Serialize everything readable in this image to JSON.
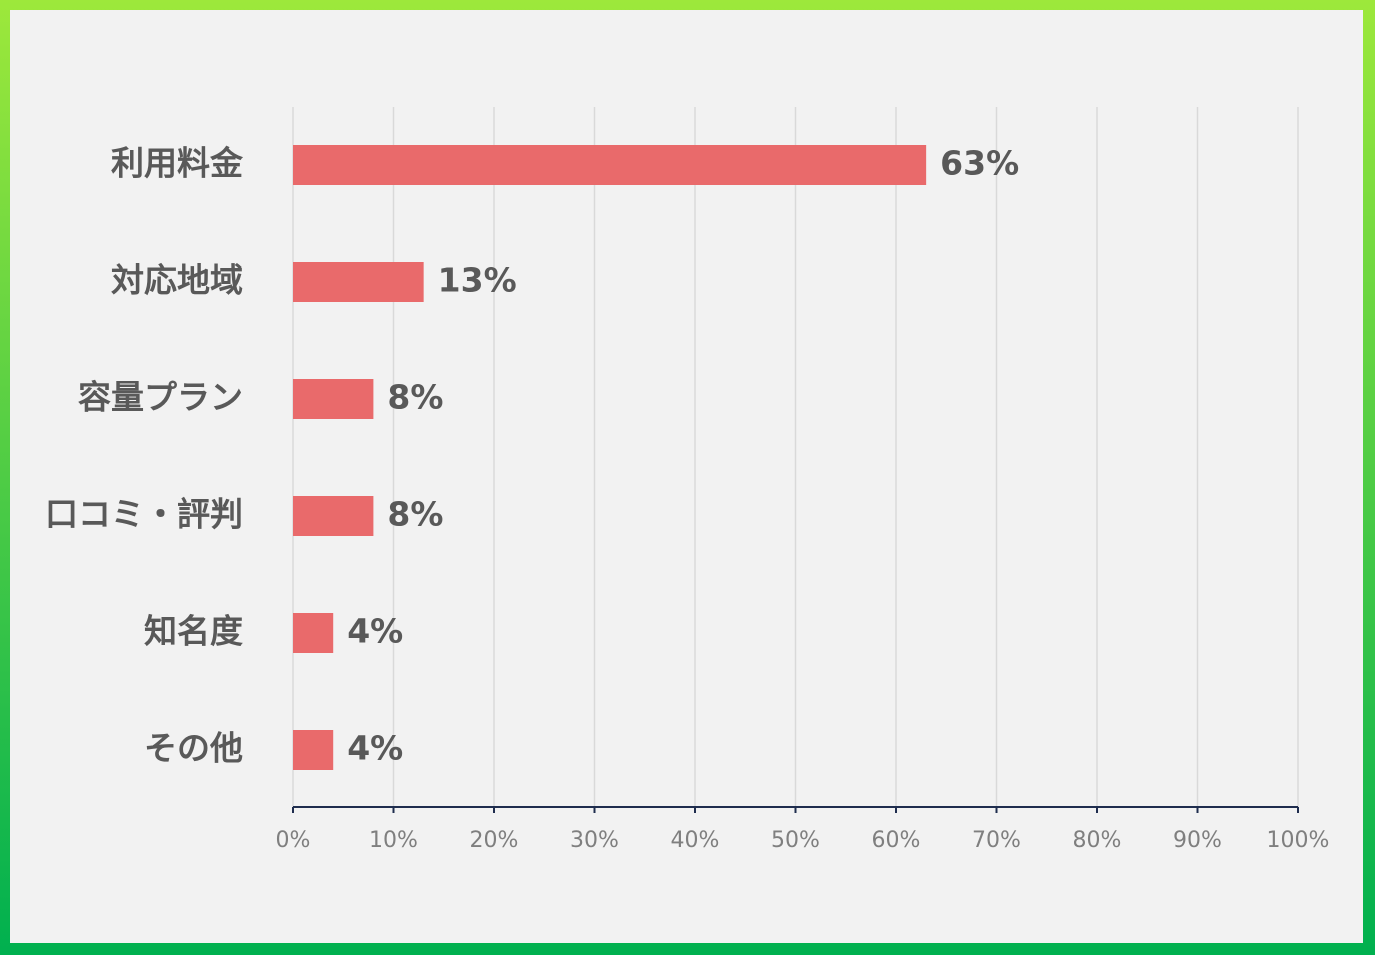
{
  "chart_data": {
    "type": "bar",
    "orientation": "horizontal",
    "categories": [
      "利用料金",
      "対応地域",
      "容量プラン",
      "口コミ・評判",
      "知名度",
      "その他"
    ],
    "values": [
      63,
      13,
      8,
      8,
      4,
      4
    ],
    "value_labels": [
      "63%",
      "13%",
      "8%",
      "8%",
      "4%",
      "4%"
    ],
    "color": "#e96a6b",
    "xlim": [
      0,
      100
    ],
    "xticks": [
      {
        "value": 0,
        "label": "0%"
      },
      {
        "value": 10,
        "label": "10%"
      },
      {
        "value": 20,
        "label": "20%"
      },
      {
        "value": 30,
        "label": "30%"
      },
      {
        "value": 40,
        "label": "40%"
      },
      {
        "value": 50,
        "label": "50%"
      },
      {
        "value": 60,
        "label": "60%"
      },
      {
        "value": 70,
        "label": "70%"
      },
      {
        "value": 80,
        "label": "80%"
      },
      {
        "value": 90,
        "label": "90%"
      },
      {
        "value": 100,
        "label": "100%"
      }
    ],
    "grid": true
  }
}
